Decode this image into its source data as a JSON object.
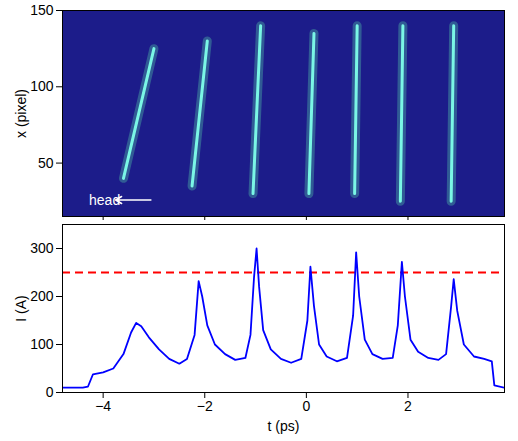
{
  "chart_data": [
    {
      "type": "streak_image",
      "ylabel": "x (pixel)",
      "xlim": [
        -4.8,
        3.9
      ],
      "xticks": [
        -4,
        -2,
        0,
        2
      ],
      "ylim": [
        15,
        150
      ],
      "yticks": [
        50,
        100,
        150
      ],
      "tick_labels": "y",
      "color": "#5ff0b0",
      "streaks": [
        {
          "t_start": -3.6,
          "x_start": 40,
          "t_end": -3.0,
          "x_end": 125
        },
        {
          "t_start": -2.25,
          "x_start": 35,
          "t_end": -1.95,
          "x_end": 130
        },
        {
          "t_start": -1.05,
          "x_start": 30,
          "t_end": -0.9,
          "x_end": 140
        },
        {
          "t_start": 0.05,
          "x_start": 30,
          "t_end": 0.15,
          "x_end": 135
        },
        {
          "t_start": 0.95,
          "x_start": 30,
          "t_end": 1.0,
          "x_end": 140
        },
        {
          "t_start": 1.85,
          "x_start": 25,
          "t_end": 1.9,
          "x_end": 140
        },
        {
          "t_start": 2.85,
          "x_start": 25,
          "t_end": 2.9,
          "x_end": 140
        }
      ],
      "annotation": {
        "text": "head"
      }
    },
    {
      "type": "line",
      "xlabel": "t (ps)",
      "ylabel": "I (A)",
      "xlim": [
        -4.8,
        3.9
      ],
      "xticks": [
        -4,
        -2,
        0,
        2
      ],
      "ylim": [
        0,
        350
      ],
      "yticks": [
        0,
        100,
        200,
        300
      ],
      "color": "#0000ff",
      "x": [
        -4.8,
        -4.4,
        -4.3,
        -4.2,
        -4.0,
        -3.8,
        -3.6,
        -3.45,
        -3.35,
        -3.25,
        -3.1,
        -2.9,
        -2.7,
        -2.5,
        -2.35,
        -2.2,
        -2.12,
        -2.05,
        -1.95,
        -1.8,
        -1.6,
        -1.4,
        -1.2,
        -1.1,
        -1.03,
        -0.98,
        -0.93,
        -0.85,
        -0.7,
        -0.5,
        -0.3,
        -0.1,
        0.02,
        0.08,
        0.15,
        0.25,
        0.4,
        0.6,
        0.8,
        0.92,
        0.98,
        1.04,
        1.15,
        1.3,
        1.5,
        1.7,
        1.8,
        1.88,
        1.94,
        2.05,
        2.2,
        2.4,
        2.6,
        2.75,
        2.85,
        2.9,
        2.97,
        3.1,
        3.3,
        3.5,
        3.65,
        3.7,
        3.9
      ],
      "values": [
        10,
        10,
        12,
        38,
        42,
        50,
        80,
        125,
        145,
        138,
        115,
        90,
        70,
        60,
        70,
        120,
        232,
        200,
        140,
        100,
        80,
        68,
        72,
        120,
        240,
        300,
        220,
        130,
        90,
        70,
        62,
        70,
        150,
        262,
        180,
        100,
        75,
        65,
        72,
        160,
        292,
        200,
        110,
        80,
        70,
        72,
        140,
        272,
        200,
        110,
        85,
        72,
        68,
        80,
        180,
        236,
        170,
        100,
        75,
        70,
        65,
        15,
        10
      ],
      "reference_line": {
        "value": 250,
        "color": "#ff0000",
        "line_style": "dashed"
      }
    }
  ]
}
